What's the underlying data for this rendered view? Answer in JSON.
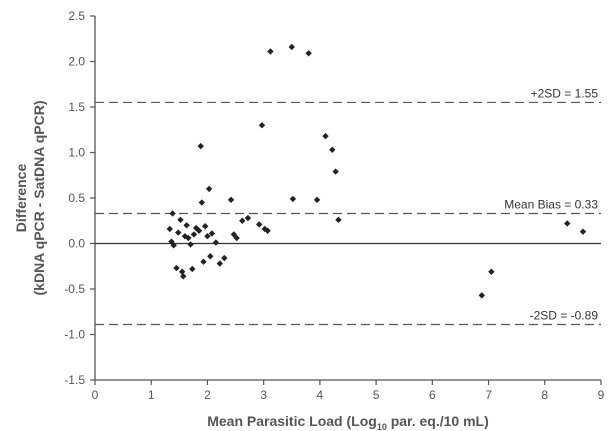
{
  "chart_data": {
    "type": "scatter",
    "title": "",
    "xlabel_main": "Mean Parasitic Load (Log",
    "xlabel_sub": "10",
    "xlabel_end": " par. eq./10 mL)",
    "ylabel_line1": "Difference",
    "ylabel_line2": "(kDNA qPCR - SatDNA qPCR)",
    "xlim": [
      0,
      9
    ],
    "ylim": [
      -1.5,
      2.5
    ],
    "xticks": [
      0,
      1,
      2,
      3,
      4,
      5,
      6,
      7,
      8,
      9
    ],
    "yticks": [
      -1.5,
      -1.0,
      -0.5,
      0.0,
      0.5,
      1.0,
      1.5,
      2.0,
      2.5
    ],
    "ytick_labels": [
      "-1.5",
      "-1.0",
      "-0.5",
      "0.0",
      "0.5",
      "1.0",
      "1.5",
      "2.0",
      "2.5"
    ],
    "grid": false,
    "zero_line": 0,
    "reference_lines": [
      {
        "name": "upper-limit",
        "value": 1.55,
        "label": "+2SD = 1.55"
      },
      {
        "name": "mean-bias",
        "value": 0.33,
        "label": "Mean Bias = 0.33"
      },
      {
        "name": "lower-limit",
        "value": -0.89,
        "label": "-2SD = -0.89"
      }
    ],
    "points": [
      {
        "x": 1.33,
        "y": 0.16
      },
      {
        "x": 1.36,
        "y": 0.02
      },
      {
        "x": 1.38,
        "y": 0.33
      },
      {
        "x": 1.4,
        "y": -0.02
      },
      {
        "x": 1.45,
        "y": -0.27
      },
      {
        "x": 1.48,
        "y": 0.12
      },
      {
        "x": 1.52,
        "y": 0.26
      },
      {
        "x": 1.55,
        "y": -0.31
      },
      {
        "x": 1.57,
        "y": -0.36
      },
      {
        "x": 1.6,
        "y": 0.08
      },
      {
        "x": 1.63,
        "y": 0.2
      },
      {
        "x": 1.66,
        "y": 0.06
      },
      {
        "x": 1.7,
        "y": -0.01
      },
      {
        "x": 1.73,
        "y": -0.28
      },
      {
        "x": 1.76,
        "y": 0.1
      },
      {
        "x": 1.8,
        "y": 0.17
      },
      {
        "x": 1.85,
        "y": 0.14
      },
      {
        "x": 1.88,
        "y": 1.07
      },
      {
        "x": 1.9,
        "y": 0.45
      },
      {
        "x": 1.93,
        "y": -0.2
      },
      {
        "x": 1.96,
        "y": 0.19
      },
      {
        "x": 2.0,
        "y": 0.08
      },
      {
        "x": 2.03,
        "y": 0.6
      },
      {
        "x": 2.05,
        "y": -0.14
      },
      {
        "x": 2.08,
        "y": 0.11
      },
      {
        "x": 2.15,
        "y": 0.01
      },
      {
        "x": 2.22,
        "y": -0.22
      },
      {
        "x": 2.3,
        "y": -0.16
      },
      {
        "x": 2.42,
        "y": 0.48
      },
      {
        "x": 2.47,
        "y": 0.1
      },
      {
        "x": 2.52,
        "y": 0.06
      },
      {
        "x": 2.62,
        "y": 0.25
      },
      {
        "x": 2.72,
        "y": 0.28
      },
      {
        "x": 2.92,
        "y": 0.21
      },
      {
        "x": 2.97,
        "y": 1.3
      },
      {
        "x": 3.02,
        "y": 0.16
      },
      {
        "x": 3.07,
        "y": 0.14
      },
      {
        "x": 3.12,
        "y": 2.11
      },
      {
        "x": 3.5,
        "y": 2.16
      },
      {
        "x": 3.52,
        "y": 0.49
      },
      {
        "x": 3.8,
        "y": 2.09
      },
      {
        "x": 3.95,
        "y": 0.48
      },
      {
        "x": 4.1,
        "y": 1.18
      },
      {
        "x": 4.22,
        "y": 1.03
      },
      {
        "x": 4.28,
        "y": 0.79
      },
      {
        "x": 4.33,
        "y": 0.26
      },
      {
        "x": 6.88,
        "y": -0.57
      },
      {
        "x": 7.05,
        "y": -0.31
      },
      {
        "x": 8.4,
        "y": 0.22
      },
      {
        "x": 8.68,
        "y": 0.13
      }
    ],
    "colors": {
      "points": "#222222",
      "axis": "#555555",
      "ref_line": "#555555",
      "text": "#555555"
    }
  }
}
